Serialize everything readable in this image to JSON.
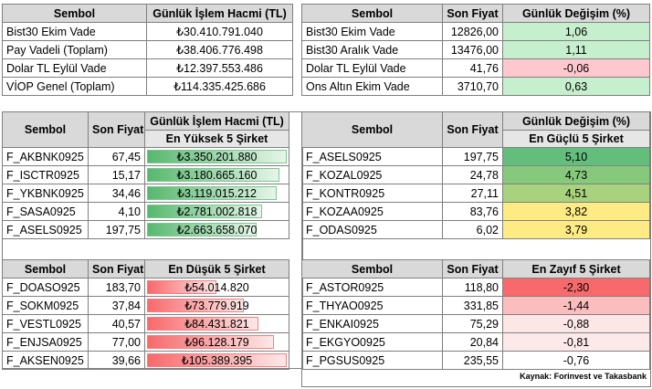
{
  "top_left": {
    "headers": [
      "Sembol",
      "Günlük İşlem Hacmi (TL)"
    ],
    "rows": [
      {
        "symbol": "Bist30 Ekim Vade",
        "value": "₺30.410.791.040"
      },
      {
        "symbol": "Pay Vadeli (Toplam)",
        "value": "₺38.406.776.498"
      },
      {
        "symbol": "Dolar TL Eylül Vade",
        "value": "₺12.397.553.486"
      },
      {
        "symbol": "VİOP Genel (Toplam)",
        "value": "₺114.335.425.686"
      }
    ]
  },
  "top_right": {
    "headers": [
      "Sembol",
      "Son Fiyat",
      "Günlük Değişim (%)"
    ],
    "rows": [
      {
        "symbol": "Bist30 Ekim Vade",
        "price": "12826,00",
        "change": "1,06",
        "color": "#c6efce"
      },
      {
        "symbol": "Bist30 Aralık Vade",
        "price": "13476,00",
        "change": "1,11",
        "color": "#c6efce"
      },
      {
        "symbol": "Dolar TL Eylül Vade",
        "price": "41,76",
        "change": "-0,06",
        "color": "#ffc7ce"
      },
      {
        "symbol": "Ons Altın Ekim Vade",
        "price": "3710,70",
        "change": "0,63",
        "color": "#c6efce"
      }
    ]
  },
  "top5_volume": {
    "headers": [
      "Sembol",
      "Son Fiyat",
      "Günlük İşlem Hacmi (TL)"
    ],
    "subheader": "En Yüksek 5 Şirket",
    "rows": [
      {
        "symbol": "F_AKBNK0925",
        "price": "67,45",
        "volume": "₺3.350.201.880",
        "fill": 1.0
      },
      {
        "symbol": "F_ISCTR0925",
        "price": "15,17",
        "volume": "₺3.180.665.160",
        "fill": 0.95
      },
      {
        "symbol": "F_YKBNK0925",
        "price": "34,46",
        "volume": "₺3.119.015.212",
        "fill": 0.93
      },
      {
        "symbol": "F_SASA0925",
        "price": "4,10",
        "volume": "₺2.781.002.818",
        "fill": 0.83
      },
      {
        "symbol": "F_ASELS0925",
        "price": "197,75",
        "volume": "₺2.663.658.070",
        "fill": 0.79
      }
    ]
  },
  "bottom5_volume": {
    "headers": [
      "Sembol",
      "Son Fiyat",
      "En Düşük 5 Şirket"
    ],
    "rows": [
      {
        "symbol": "F_DOASO925",
        "price": "183,70",
        "volume": "₺54.014.820",
        "fill": 0.51
      },
      {
        "symbol": "F_SOKM0925",
        "price": "37,84",
        "volume": "₺73.779.919",
        "fill": 0.7
      },
      {
        "symbol": "F_VESTL0925",
        "price": "40,57",
        "volume": "₺84.431.821",
        "fill": 0.8
      },
      {
        "symbol": "F_ENJSA0925",
        "price": "77,00",
        "volume": "₺96.128.179",
        "fill": 0.91
      },
      {
        "symbol": "F_AKSEN0925",
        "price": "39,66",
        "volume": "₺105.389.395",
        "fill": 1.0
      }
    ]
  },
  "top5_change": {
    "headers": [
      "Sembol",
      "Son Fiyat",
      "Günlük Değişim (%)"
    ],
    "subheader": "En Güçlü 5 Şirket",
    "rows": [
      {
        "symbol": "F_ASELS0925",
        "price": "197,75",
        "change": "5,10",
        "color": "#63be7b"
      },
      {
        "symbol": "F_KOZAL0925",
        "price": "24,78",
        "change": "4,73",
        "color": "#87c97c"
      },
      {
        "symbol": "F_KONTR0925",
        "price": "27,11",
        "change": "4,51",
        "color": "#a9d27f"
      },
      {
        "symbol": "F_KOZAA0925",
        "price": "83,76",
        "change": "3,82",
        "color": "#ffeb84"
      },
      {
        "symbol": "F_ODAS0925",
        "price": "6,02",
        "change": "3,79",
        "color": "#ffeb84"
      }
    ]
  },
  "bottom5_change": {
    "headers": [
      "Sembol",
      "Son Fiyat",
      "En Zayıf 5 Şirket"
    ],
    "rows": [
      {
        "symbol": "F_ASTOR0925",
        "price": "118,80",
        "change": "-2,30",
        "color": "#f8696b"
      },
      {
        "symbol": "F_THYAO0925",
        "price": "331,85",
        "change": "-1,44",
        "color": "#fbbdbe"
      },
      {
        "symbol": "F_ENKAI0925",
        "price": "75,29",
        "change": "-0,88",
        "color": "#fde6e6"
      },
      {
        "symbol": "F_EKGYO0925",
        "price": "20,84",
        "change": "-0,81",
        "color": "#fde9e9"
      },
      {
        "symbol": "F_PGSUS0925",
        "price": "235,55",
        "change": "-0,76",
        "color": "#ffffff"
      }
    ]
  },
  "source": "Kaynak: Forinvest ve Takasbank"
}
